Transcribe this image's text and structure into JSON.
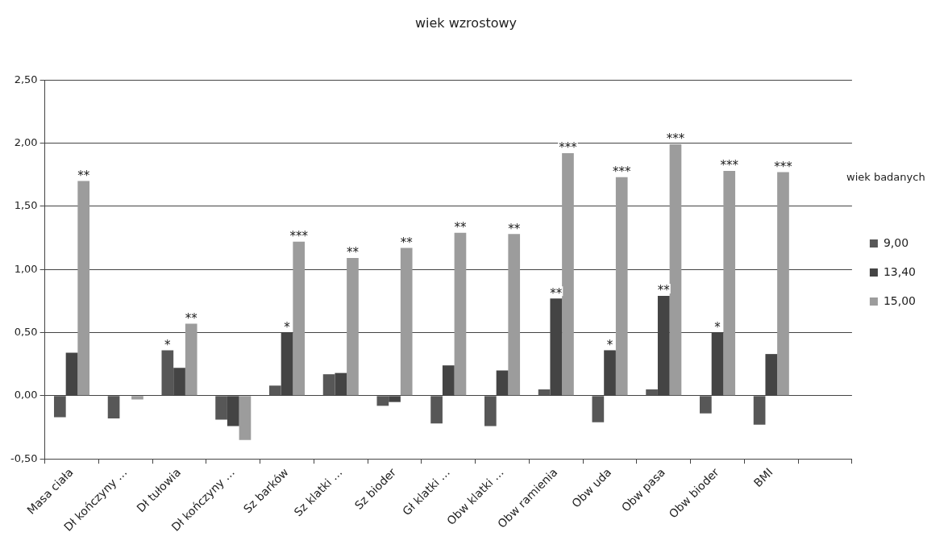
{
  "chart_data": {
    "type": "bar",
    "title": "wiek wzrostowy",
    "legend_title": "wiek badanych",
    "categories": [
      "Masa ciała",
      "Dł kończyny …",
      "Dł tułowia",
      "Dł kończyny …",
      "Sz barków",
      "Sz klatki …",
      "Sz bioder",
      "Gł klatki …",
      "Obw klatki …",
      "Obw ramienia",
      "Obw uda",
      "Obw pasa",
      "Obw bioder",
      "BMI",
      null
    ],
    "series": [
      {
        "name": "9,00",
        "color": "#575757",
        "values": [
          -0.17,
          -0.18,
          0.36,
          -0.19,
          0.08,
          0.17,
          -0.08,
          -0.22,
          -0.24,
          0.05,
          -0.21,
          0.05,
          -0.14,
          -0.23,
          null
        ],
        "value_labels": [
          null,
          null,
          "*",
          null,
          null,
          null,
          null,
          null,
          null,
          null,
          null,
          null,
          null,
          null,
          null
        ]
      },
      {
        "name": "13,40",
        "color": "#444444",
        "values": [
          0.34,
          0,
          0.22,
          -0.24,
          0.5,
          0.18,
          -0.05,
          0.24,
          0.2,
          0.77,
          0.36,
          0.79,
          0.5,
          0.33,
          null
        ],
        "value_labels": [
          null,
          null,
          null,
          null,
          "*",
          null,
          null,
          null,
          null,
          "**",
          "*",
          "**",
          "*",
          null,
          null
        ]
      },
      {
        "name": "15,00",
        "color": "#9c9c9c",
        "values": [
          1.7,
          -0.03,
          0.57,
          -0.35,
          1.22,
          1.09,
          1.17,
          1.29,
          1.28,
          1.92,
          1.73,
          1.99,
          1.78,
          1.77,
          null
        ],
        "value_labels": [
          "**",
          null,
          "**",
          null,
          "***",
          "**",
          "**",
          "**",
          "**",
          "***",
          "***",
          "***",
          "***",
          "***",
          null
        ]
      }
    ],
    "ylim": [
      -0.5,
      2.5
    ],
    "yticks": [
      {
        "value": -0.5,
        "label": "-0,50"
      },
      {
        "value": 0,
        "label": "0,00"
      },
      {
        "value": 0.5,
        "label": "0,50"
      },
      {
        "value": 1,
        "label": "1,00"
      },
      {
        "value": 1.5,
        "label": "1,50"
      },
      {
        "value": 2,
        "label": "2,00"
      },
      {
        "value": 2.5,
        "label": "2,50"
      }
    ],
    "grid": "y",
    "legend": "right"
  }
}
